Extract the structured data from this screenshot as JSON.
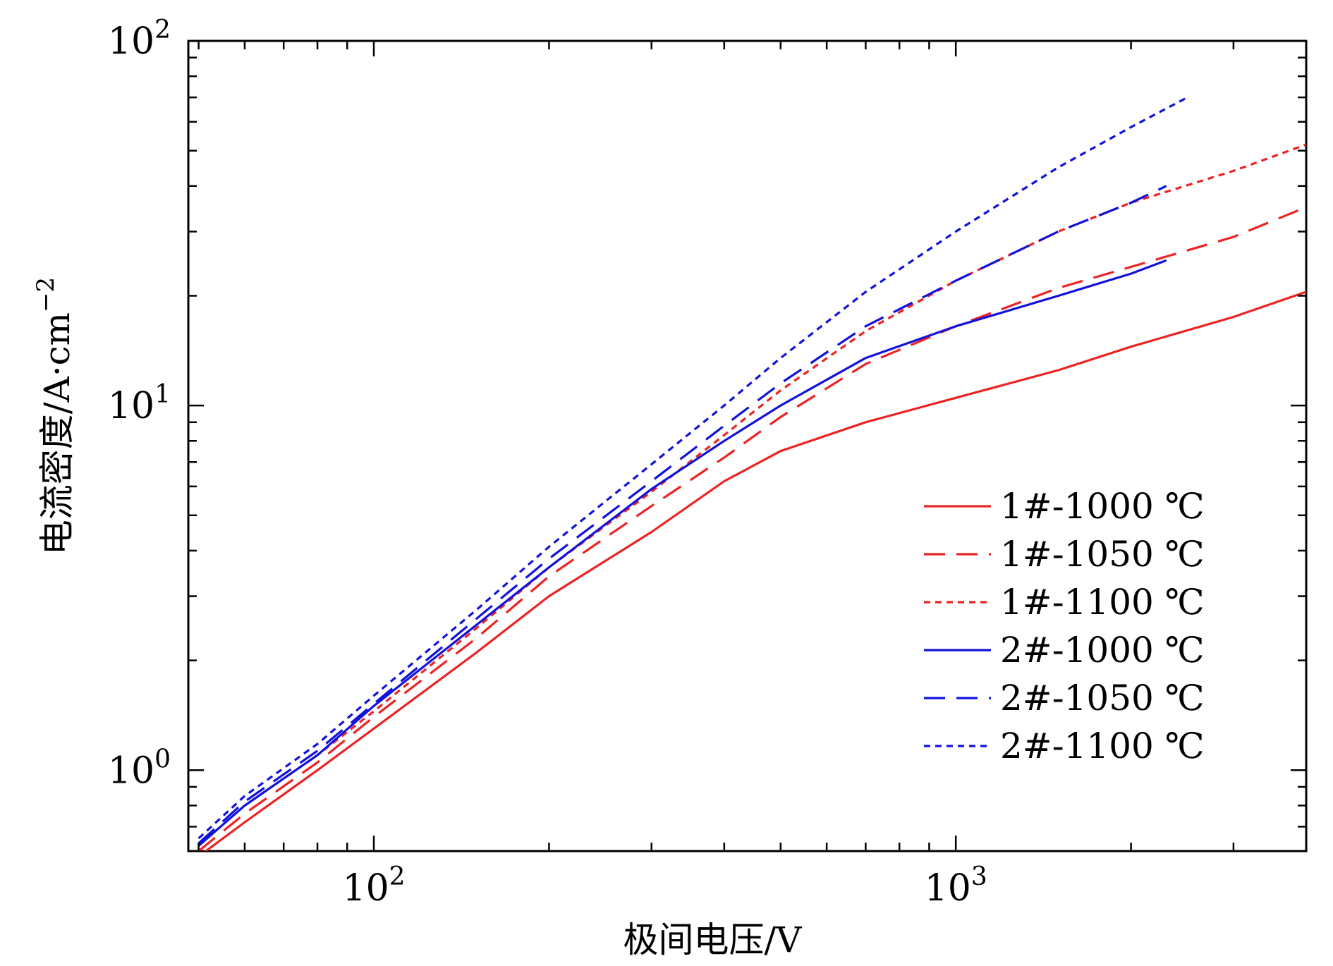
{
  "chart_data": {
    "type": "line",
    "title": "",
    "xlabel": "极间电压/V",
    "ylabel": "电流密度/A·cm",
    "ylabel_exp": "−2",
    "xscale": "log",
    "yscale": "log",
    "xlim": [
      48,
      4000
    ],
    "ylim": [
      0.6,
      100
    ],
    "xticks": [
      {
        "base": "10",
        "exp": "2",
        "value": 100
      },
      {
        "base": "10",
        "exp": "3",
        "value": 1000
      }
    ],
    "yticks": [
      {
        "base": "10",
        "exp": "0",
        "value": 1
      },
      {
        "base": "10",
        "exp": "1",
        "value": 10
      },
      {
        "base": "10",
        "exp": "2",
        "value": 100
      }
    ],
    "legend_position": "bottom-right",
    "series": [
      {
        "name": "1#-1000 ℃",
        "color": "#ee2222",
        "style": "solid",
        "x": [
          50,
          60,
          80,
          100,
          150,
          200,
          300,
          400,
          500,
          700,
          1000,
          1500,
          2000,
          3000,
          4000
        ],
        "y": [
          0.58,
          0.72,
          1.0,
          1.3,
          2.1,
          3.0,
          4.5,
          6.2,
          7.5,
          9.0,
          10.5,
          12.5,
          14.5,
          17.5,
          20.5
        ]
      },
      {
        "name": "1#-1050 ℃",
        "color": "#ee2222",
        "style": "dashed",
        "x": [
          50,
          60,
          80,
          100,
          150,
          200,
          300,
          400,
          500,
          700,
          1000,
          1500,
          2000,
          3000,
          4000
        ],
        "y": [
          0.6,
          0.76,
          1.05,
          1.4,
          2.3,
          3.4,
          5.3,
          7.2,
          9.3,
          13.0,
          16.5,
          21.0,
          24.0,
          29.0,
          35.0
        ]
      },
      {
        "name": "1#-1100 ℃",
        "color": "#ee2222",
        "style": "dotted",
        "x": [
          50,
          60,
          80,
          100,
          150,
          200,
          300,
          400,
          500,
          700,
          1000,
          1500,
          2000,
          3000,
          4000
        ],
        "y": [
          0.62,
          0.8,
          1.1,
          1.45,
          2.45,
          3.6,
          5.8,
          8.3,
          11.0,
          16.0,
          22.0,
          30.0,
          36.0,
          44.0,
          52.0
        ]
      },
      {
        "name": "2#-1000 ℃",
        "color": "#1111dd",
        "style": "solid",
        "x": [
          50,
          60,
          80,
          100,
          150,
          200,
          300,
          400,
          500,
          700,
          1000,
          1500,
          2000,
          2300
        ],
        "y": [
          0.62,
          0.8,
          1.1,
          1.5,
          2.5,
          3.6,
          5.9,
          8.0,
          10.0,
          13.5,
          16.5,
          20.0,
          23.0,
          25.0
        ]
      },
      {
        "name": "2#-1050 ℃",
        "color": "#1111dd",
        "style": "dashed",
        "x": [
          50,
          60,
          80,
          100,
          150,
          200,
          300,
          400,
          500,
          700,
          1000,
          1500,
          2000,
          2300
        ],
        "y": [
          0.63,
          0.82,
          1.13,
          1.52,
          2.6,
          3.8,
          6.2,
          8.8,
          11.5,
          16.5,
          22.0,
          30.0,
          36.0,
          40.0
        ]
      },
      {
        "name": "2#-1100 ℃",
        "color": "#1111dd",
        "style": "dotted",
        "x": [
          50,
          60,
          80,
          100,
          150,
          200,
          300,
          400,
          500,
          700,
          1000,
          1500,
          2000,
          2500
        ],
        "y": [
          0.65,
          0.85,
          1.18,
          1.6,
          2.75,
          4.1,
          6.9,
          10.0,
          13.5,
          20.5,
          30.0,
          45.0,
          58.0,
          70.0
        ]
      }
    ]
  }
}
